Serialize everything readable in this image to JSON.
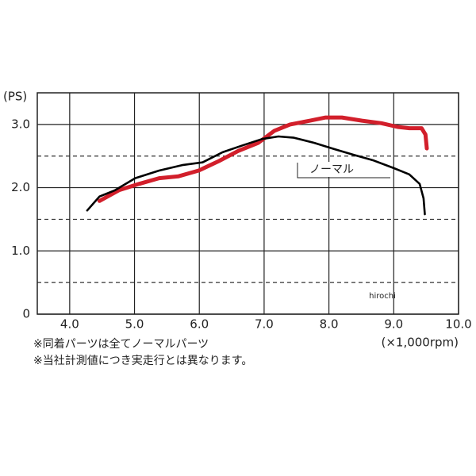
{
  "chart_data": {
    "type": "line",
    "y_unit_label": "(PS)",
    "x_unit_label": "(×1,000rpm)",
    "xlim": [
      3.5,
      10.0
    ],
    "ylim": [
      0,
      3.5
    ],
    "xticks": [
      {
        "value": 4,
        "label": "4.0"
      },
      {
        "value": 5,
        "label": "5.0"
      },
      {
        "value": 6,
        "label": "6.0"
      },
      {
        "value": 7,
        "label": "7.0"
      },
      {
        "value": 8,
        "label": "8.0"
      },
      {
        "value": 9,
        "label": "9.0"
      },
      {
        "value": 10,
        "label": "10.0"
      }
    ],
    "yticks": [
      0,
      {
        "value": 1,
        "label": "1.0"
      },
      {
        "value": 2,
        "label": "2.0"
      },
      {
        "value": 3,
        "label": "3.0"
      }
    ],
    "minor_yticks": [
      0.5,
      1.5,
      2.5
    ],
    "grid": true,
    "series": [
      {
        "name": "ノーマル",
        "color": "#000000",
        "x": [
          4.27,
          4.46,
          4.7,
          5.01,
          5.38,
          5.75,
          6.05,
          6.36,
          6.67,
          6.97,
          7.22,
          7.46,
          7.77,
          8.08,
          8.38,
          8.69,
          9.0,
          9.24,
          9.4,
          9.46,
          9.48
        ],
        "values": [
          1.64,
          1.86,
          1.96,
          2.15,
          2.27,
          2.36,
          2.4,
          2.56,
          2.67,
          2.77,
          2.81,
          2.79,
          2.71,
          2.61,
          2.52,
          2.43,
          2.31,
          2.21,
          2.06,
          1.83,
          1.58
        ]
      },
      {
        "color": "#d21f2b",
        "x": [
          4.46,
          4.76,
          5.07,
          5.38,
          5.68,
          5.99,
          6.3,
          6.6,
          6.91,
          7.16,
          7.4,
          7.71,
          7.95,
          8.2,
          8.51,
          8.81,
          9.06,
          9.24,
          9.43,
          9.49,
          9.51
        ],
        "values": [
          1.79,
          1.96,
          2.06,
          2.15,
          2.18,
          2.27,
          2.42,
          2.58,
          2.71,
          2.9,
          3.0,
          3.06,
          3.11,
          3.11,
          3.06,
          3.02,
          2.96,
          2.94,
          2.94,
          2.84,
          2.62
        ]
      }
    ],
    "watermark": "hirochi",
    "notes": [
      "※同着パーツは全てノーマルパーツ",
      "※当社計測値につき実走行とは異なります。"
    ]
  }
}
